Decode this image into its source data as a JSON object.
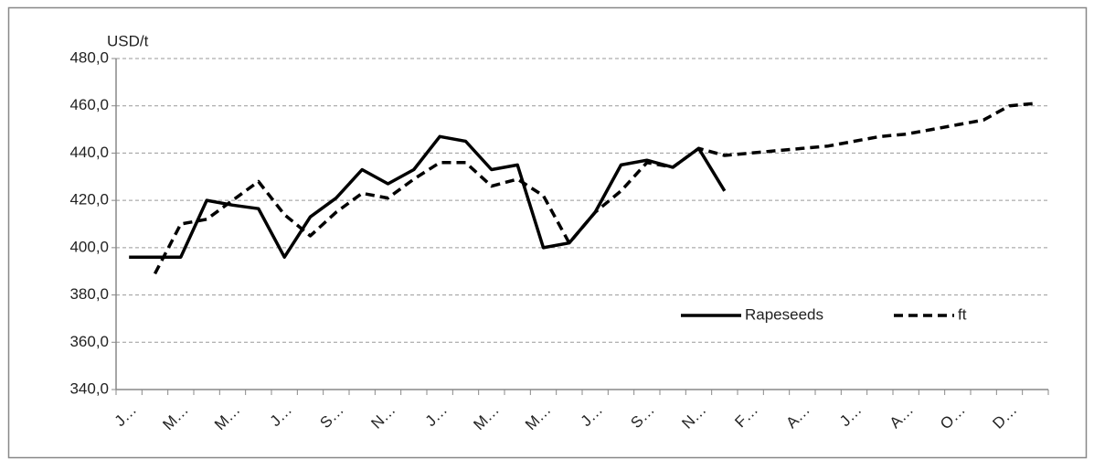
{
  "chart_data": {
    "type": "line",
    "y_label": "USD/t",
    "categories": [
      "J…",
      null,
      "M…",
      null,
      "M…",
      null,
      "J…",
      null,
      "S…",
      null,
      "N…",
      null,
      "J…",
      null,
      "M…",
      null,
      "M…",
      null,
      "J…",
      null,
      "S…",
      null,
      "N…",
      null,
      "F…",
      null,
      "A…",
      null,
      "J…",
      null,
      "A…",
      null,
      "O…",
      null,
      "D…",
      null
    ],
    "series": [
      {
        "name": "Rapeseeds",
        "color": "#000000",
        "dash": false,
        "values": [
          396,
          396,
          396,
          420,
          418,
          416.5,
          396,
          413,
          421,
          433,
          427,
          433,
          447,
          445,
          433,
          435,
          400,
          402,
          415,
          435,
          437,
          434,
          442,
          424,
          null,
          null,
          null,
          null,
          null,
          null,
          null,
          null,
          null,
          null,
          null,
          null
        ]
      },
      {
        "name": "ft",
        "color": "#000000",
        "dash": true,
        "values": [
          null,
          389,
          410,
          412,
          420,
          428,
          414,
          405,
          415,
          423,
          421,
          429,
          436,
          436,
          426,
          429,
          422,
          402,
          415,
          424,
          436,
          434,
          442,
          439,
          440,
          441,
          442,
          443,
          445,
          447,
          448,
          450,
          452,
          454,
          460,
          461
        ]
      }
    ],
    "ylim": [
      340,
      480
    ],
    "yticks": [
      {
        "value": 340,
        "label": "340,0"
      },
      {
        "value": 360,
        "label": "360,0"
      },
      {
        "value": 380,
        "label": "380,0"
      },
      {
        "value": 400,
        "label": "400,0"
      },
      {
        "value": 420,
        "label": "420,0"
      },
      {
        "value": 440,
        "label": "440,0"
      },
      {
        "value": 460,
        "label": "460,0"
      },
      {
        "value": 480,
        "label": "480,0"
      }
    ],
    "grid": true,
    "legend": "bottom-right"
  }
}
